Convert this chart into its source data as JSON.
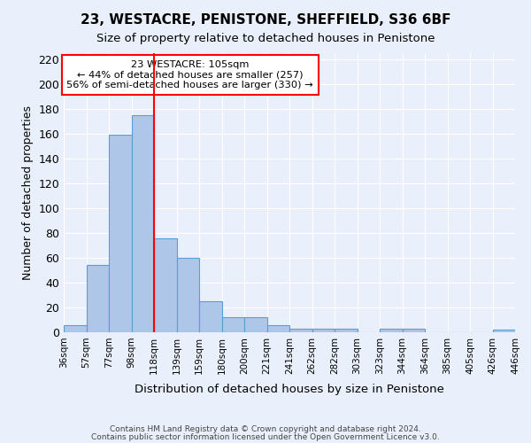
{
  "title1": "23, WESTACRE, PENISTONE, SHEFFIELD, S36 6BF",
  "title2": "Size of property relative to detached houses in Penistone",
  "xlabel": "Distribution of detached houses by size in Penistone",
  "ylabel": "Number of detached properties",
  "footer1": "Contains HM Land Registry data © Crown copyright and database right 2024.",
  "footer2": "Contains public sector information licensed under the Open Government Licence v3.0.",
  "bin_labels": [
    "36sqm",
    "57sqm",
    "77sqm",
    "98sqm",
    "118sqm",
    "139sqm",
    "159sqm",
    "180sqm",
    "200sqm",
    "221sqm",
    "241sqm",
    "262sqm",
    "282sqm",
    "303sqm",
    "323sqm",
    "344sqm",
    "364sqm",
    "385sqm",
    "405sqm",
    "426sqm",
    "446sqm"
  ],
  "bar_values": [
    6,
    54,
    159,
    175,
    76,
    60,
    25,
    12,
    12,
    6,
    3,
    3,
    3,
    0,
    3,
    3,
    0,
    0,
    0,
    2
  ],
  "bar_color": "#aec6e8",
  "bar_edge_color": "#5a9fd4",
  "vline_x": 3.5,
  "vline_color": "red",
  "annotation_text": "23 WESTACRE: 105sqm\n← 44% of detached houses are smaller (257)\n56% of semi-detached houses are larger (330) →",
  "annotation_box_color": "white",
  "annotation_box_edge": "red",
  "ylim": [
    0,
    225
  ],
  "yticks": [
    0,
    20,
    40,
    60,
    80,
    100,
    120,
    140,
    160,
    180,
    200,
    220
  ],
  "background_color": "#eaf0fb",
  "plot_bg_color": "#eaf0fb"
}
